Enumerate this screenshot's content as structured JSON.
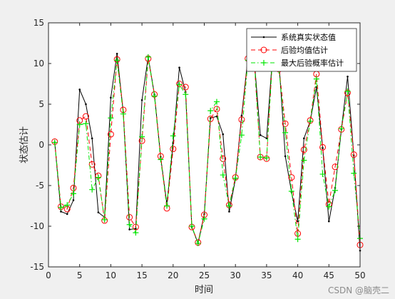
{
  "chart_data": {
    "type": "line",
    "xlabel": "时间",
    "ylabel": "状态估计",
    "xlim": [
      0,
      50
    ],
    "ylim": [
      -15,
      15
    ],
    "xticks": [
      0,
      5,
      10,
      15,
      20,
      25,
      30,
      35,
      40,
      45,
      50
    ],
    "yticks": [
      -15,
      -10,
      -5,
      0,
      5,
      10,
      15
    ],
    "grid": false,
    "legend_position": "top-right",
    "x": [
      1,
      2,
      3,
      4,
      5,
      6,
      7,
      8,
      9,
      10,
      11,
      12,
      13,
      14,
      15,
      16,
      17,
      18,
      19,
      20,
      21,
      22,
      23,
      24,
      25,
      26,
      27,
      28,
      29,
      30,
      31,
      32,
      33,
      34,
      35,
      36,
      37,
      38,
      39,
      40,
      41,
      42,
      43,
      44,
      45,
      46,
      47,
      48,
      49,
      50
    ],
    "series": [
      {
        "name": "系统真实状态值",
        "color": "#000000",
        "dash": "solid",
        "marker": "point",
        "values": [
          0.3,
          -8.2,
          -8.5,
          -6.8,
          6.8,
          5.0,
          0.8,
          -8.3,
          -8.9,
          5.8,
          11.2,
          4.0,
          -10.4,
          -10.3,
          5.5,
          10.8,
          6.2,
          -1.5,
          -7.3,
          0.2,
          9.5,
          6.5,
          -10.1,
          -12.1,
          -8.5,
          3.3,
          3.5,
          1.3,
          -8.2,
          -4.2,
          3.6,
          10.7,
          10.6,
          1.2,
          0.8,
          11.4,
          10.0,
          -1.4,
          -5.8,
          -9.4,
          0.8,
          2.9,
          7.1,
          -0.4,
          -9.4,
          -5.3,
          1.9,
          8.4,
          -1.3,
          -13.0
        ]
      },
      {
        "name": "后验均值估计",
        "color": "#ff0000",
        "dash": "dashed",
        "marker": "circle",
        "values": [
          0.4,
          -7.6,
          -7.9,
          -5.3,
          3.0,
          3.5,
          -2.4,
          -3.8,
          -9.3,
          1.3,
          10.5,
          4.3,
          -8.9,
          -10.1,
          0.5,
          10.6,
          6.2,
          -1.4,
          -7.8,
          -0.5,
          7.5,
          7.1,
          -10.1,
          -12.0,
          -8.6,
          3.2,
          4.4,
          -1.7,
          -7.4,
          -4.0,
          3.1,
          10.6,
          10.5,
          -1.5,
          -1.7,
          11.4,
          9.3,
          2.6,
          -4.0,
          -10.9,
          -0.6,
          3.0,
          8.7,
          -0.3,
          -7.3,
          -2.7,
          1.9,
          6.4,
          -1.2,
          -12.3
        ]
      },
      {
        "name": "最大后验概率估计",
        "color": "#00e600",
        "dash": "dashdot",
        "marker": "plus",
        "values": [
          0.3,
          -7.7,
          -7.4,
          -6.0,
          2.5,
          2.6,
          -5.5,
          -4.0,
          -9.2,
          3.3,
          10.4,
          3.8,
          -9.8,
          -10.8,
          1.0,
          10.8,
          6.0,
          -1.8,
          -7.5,
          1.1,
          7.4,
          6.2,
          -10.0,
          -12.1,
          -9.1,
          4.2,
          5.3,
          -3.7,
          -7.5,
          -4.1,
          1.2,
          10.4,
          10.7,
          -1.5,
          -1.6,
          11.3,
          9.1,
          1.5,
          -5.7,
          -11.6,
          -1.9,
          2.9,
          8.1,
          -3.6,
          -7.6,
          -5.6,
          2.0,
          6.6,
          -3.5,
          -11.5
        ]
      }
    ]
  },
  "watermark": "CSDN @脑壳二"
}
